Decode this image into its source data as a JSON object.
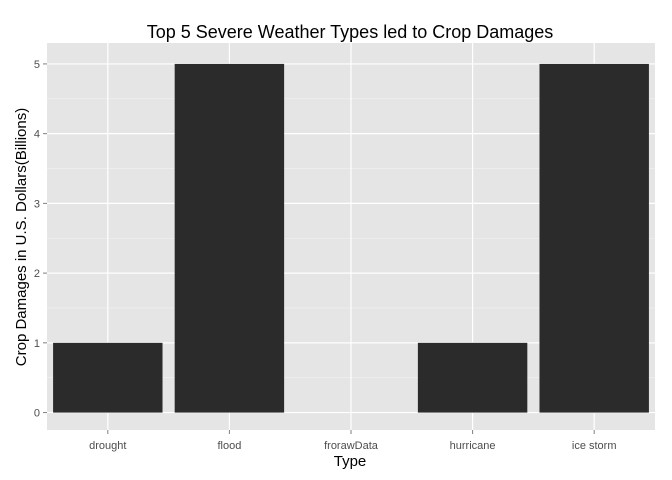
{
  "chart_data": {
    "type": "bar",
    "title": "Top 5 Severe Weather Types led to Crop Damages",
    "xlabel": "Type",
    "ylabel": "Crop Damages in U.S. Dollars(Billions)",
    "categories": [
      "drought",
      "flood",
      "frorawData",
      "hurricane",
      "ice storm"
    ],
    "values": [
      1,
      5,
      0,
      1,
      5
    ],
    "ylim": [
      -0.25,
      5.3
    ],
    "yticks": [
      0,
      1,
      2,
      3,
      4,
      5
    ],
    "grid": true,
    "colors": {
      "panel_background": "#e5e5e5",
      "grid_major": "#ffffff",
      "grid_minor": "#f2f2f2",
      "bar_fill": "#2b2b2b",
      "tick_mark": "#7f7f7f"
    }
  }
}
